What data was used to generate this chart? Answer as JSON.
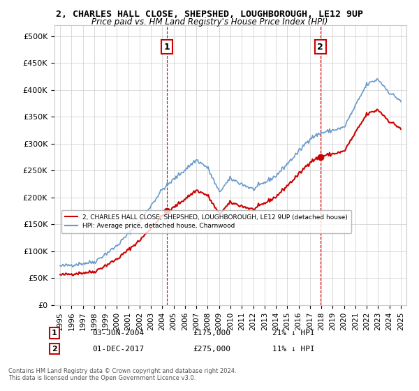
{
  "title": "2, CHARLES HALL CLOSE, SHEPSHED, LOUGHBOROUGH, LE12 9UP",
  "subtitle": "Price paid vs. HM Land Registry's House Price Index (HPI)",
  "sale1_date": "03-JUN-2004",
  "sale1_price": 175000,
  "sale1_label": "1",
  "sale1_hpi_diff": "21% ↓ HPI",
  "sale2_date": "01-DEC-2017",
  "sale2_price": 275000,
  "sale2_label": "2",
  "sale2_hpi_diff": "11% ↓ HPI",
  "legend_line1": "2, CHARLES HALL CLOSE, SHEPSHED, LOUGHBOROUGH, LE12 9UP (detached house)",
  "legend_line2": "HPI: Average price, detached house, Charnwood",
  "footer": "Contains HM Land Registry data © Crown copyright and database right 2024.\nThis data is licensed under the Open Government Licence v3.0.",
  "line_color_property": "#cc0000",
  "line_color_hpi": "#6699cc",
  "marker_color": "#cc0000",
  "vline_color": "#cc0000",
  "grid_color": "#cccccc",
  "background_color": "#ffffff",
  "ylim": [
    0,
    520000
  ],
  "yticks": [
    0,
    50000,
    100000,
    150000,
    200000,
    250000,
    300000,
    350000,
    400000,
    450000,
    500000
  ],
  "xlabel_years": [
    1995,
    1996,
    1997,
    1998,
    1999,
    2000,
    2001,
    2002,
    2003,
    2004,
    2005,
    2006,
    2007,
    2008,
    2009,
    2010,
    2011,
    2012,
    2013,
    2014,
    2015,
    2016,
    2017,
    2018,
    2019,
    2020,
    2021,
    2022,
    2023,
    2024,
    2025
  ],
  "sale1_x": 2004.42,
  "sale2_x": 2017.92
}
